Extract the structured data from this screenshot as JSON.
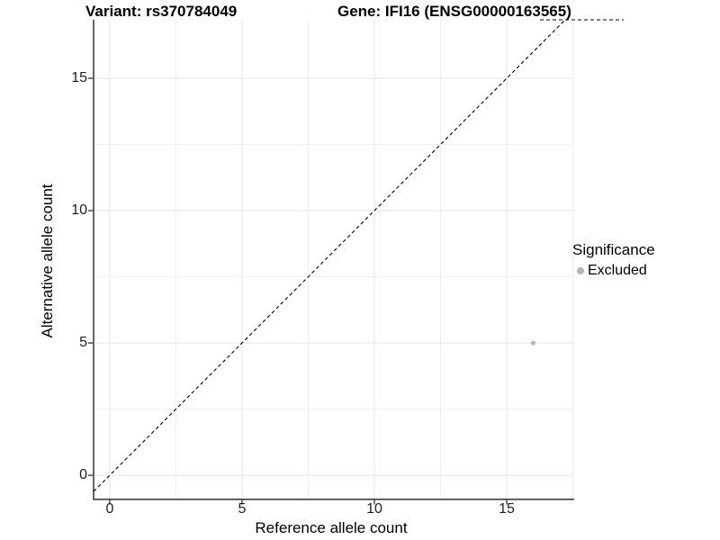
{
  "figure": {
    "title_left": "Variant: rs370784049",
    "title_right": "Gene: IFI16 (ENSG00000163565)"
  },
  "chart_data": {
    "type": "scatter",
    "xlabel": "Reference allele count",
    "ylabel": "Alternative allele count",
    "x_ticks": [
      0,
      5,
      10,
      15
    ],
    "y_ticks": [
      0,
      5,
      10,
      15
    ],
    "x_minor_ticks": [
      2.5,
      7.5,
      12.5,
      17.5
    ],
    "y_minor_ticks": [
      2.5,
      7.5,
      12.5
    ],
    "xlim": [
      -0.61,
      17.55
    ],
    "ylim": [
      -0.88,
      17.21
    ],
    "grid": true,
    "series": [
      {
        "name": "Excluded",
        "color": "#b5b5b5",
        "points": [
          {
            "x": 16,
            "y": 5
          }
        ]
      }
    ],
    "reference_lines": [
      {
        "type": "identity y = x",
        "style": "dashed",
        "color": "#000000"
      },
      {
        "type": "horizontal segment at panel top",
        "style": "dashed",
        "color": "#000000"
      }
    ],
    "legend": {
      "title": "Significance",
      "position": "right",
      "items": [
        {
          "label": "Excluded",
          "color": "#b5b5b5"
        }
      ]
    },
    "colors": {
      "axis_line": "#404040",
      "tick_text": "#1f1f1f",
      "grid_major": "#e5e5e5",
      "grid_minor": "#f0f0f0",
      "background": "#ffffff"
    }
  }
}
